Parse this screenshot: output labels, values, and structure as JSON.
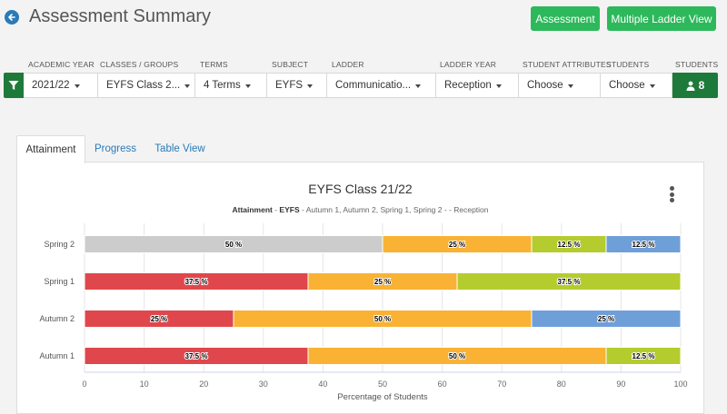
{
  "header": {
    "title": "Assessment Summary",
    "assessment_btn": "Assessment",
    "ladder_view_btn": "Multiple Ladder View"
  },
  "filters": {
    "labels": {
      "academic_year": "ACADEMIC YEAR",
      "classes": "CLASSES / GROUPS",
      "terms": "TERMS",
      "subject": "SUBJECT",
      "ladder": "LADDER",
      "ladder_year": "LADDER YEAR",
      "attributes": "STUDENT ATTRIBUTES",
      "students": "STUDENTS",
      "students_count_label": "STUDENTS"
    },
    "values": {
      "academic_year": "2021/22",
      "classes": "EYFS Class 2...",
      "terms": "4 Terms",
      "subject": "EYFS",
      "ladder": "Communicatio...",
      "ladder_year": "Reception",
      "attributes": "Choose",
      "students": "Choose",
      "students_count": "8"
    }
  },
  "tabs": {
    "attainment": "Attainment",
    "progress": "Progress",
    "table_view": "Table View"
  },
  "chart_data": {
    "type": "bar",
    "orientation": "horizontal-stacked",
    "title": "EYFS Class 21/22",
    "subtitle_bold_1": "Attainment",
    "subtitle_sep_1": " - ",
    "subtitle_bold_2": "EYFS",
    "subtitle_rest": " - Autumn 1, Autumn 2, Spring 1, Spring 2 - - Reception",
    "xlabel": "Percentage of Students",
    "ylabel": "",
    "xlim": [
      0,
      100
    ],
    "xticks": [
      0,
      10,
      20,
      30,
      40,
      50,
      60,
      70,
      80,
      90,
      100
    ],
    "grid": true,
    "categories": [
      "Spring 2",
      "Spring 1",
      "Autumn 2",
      "Autumn 1"
    ],
    "series": [
      {
        "color": "#e0474c",
        "values": [
          0,
          37.5,
          25,
          37.5
        ]
      },
      {
        "color": "#cccccc",
        "values": [
          50,
          0,
          0,
          0
        ]
      },
      {
        "color": "#f9b233",
        "values": [
          25,
          25,
          50,
          50
        ]
      },
      {
        "color": "#b5cc2e",
        "values": [
          12.5,
          37.5,
          0,
          12.5
        ]
      },
      {
        "color": "#6f9fd8",
        "values": [
          12.5,
          0,
          25,
          0
        ]
      }
    ],
    "data_label_suffix": " %"
  }
}
